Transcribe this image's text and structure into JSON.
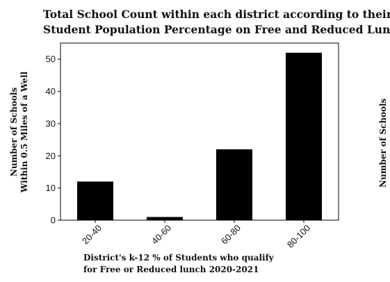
{
  "chart_data": {
    "type": "bar",
    "title_line1": "Total School Count within each district according to  their",
    "title_line2": "Student  Population Percentage on Free and Reduced Lunch",
    "xlabel_line1": "District's k-12 % of Students who qualify",
    "xlabel_line2": "for Free or Reduced lunch 2020-2021",
    "ylabel_line1": "Number of Schools",
    "ylabel_line2": "Within 0.5 Miles of a Well",
    "categories": [
      "20-40",
      "40-60",
      "60-80",
      "80-100"
    ],
    "values": [
      12,
      1,
      22,
      52
    ],
    "yticks": [
      0,
      10,
      20,
      30,
      40,
      50
    ],
    "ylim": [
      0,
      55
    ],
    "bar_color": "#000000",
    "grid": false,
    "legend": "none",
    "clipped_neighbor_ylabel": "Number of Schools"
  }
}
